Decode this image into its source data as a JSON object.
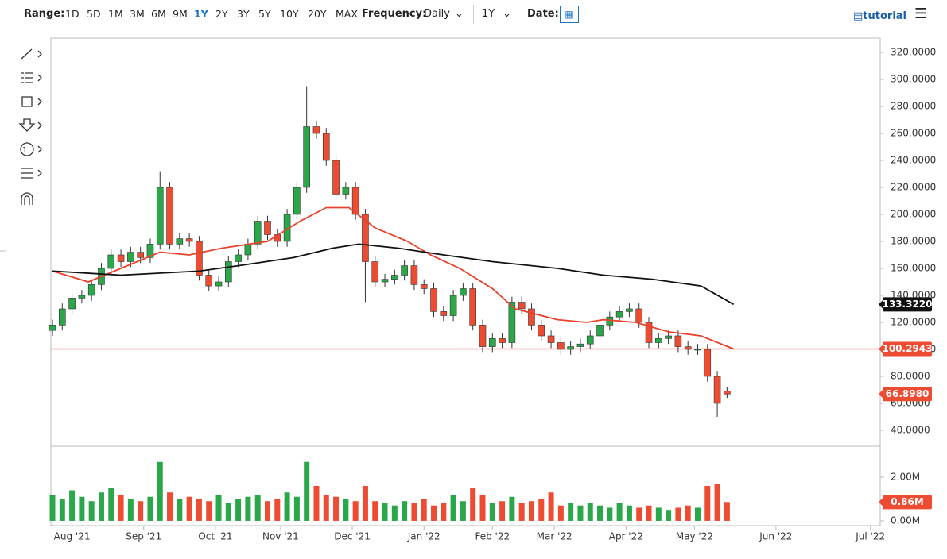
{
  "toolbar": {
    "range_label": "Range:",
    "ranges": [
      "1D",
      "5D",
      "1M",
      "3M",
      "6M",
      "9M",
      "1Y",
      "2Y",
      "3Y",
      "5Y",
      "10Y",
      "20Y",
      "MAX"
    ],
    "range_selected_index": 6,
    "frequency_label": "Frequency:",
    "frequency": "Daily",
    "period": "1Y",
    "date_label": "Date:",
    "tutorial": "tutorial"
  },
  "chart_data": {
    "type": "candlestick",
    "up_color": "#2aa748",
    "down_color": "#ee4b33",
    "xlim": [
      0,
      254
    ],
    "xticks": [
      {
        "value": 6,
        "label": "Aug '21"
      },
      {
        "value": 28,
        "label": "Sep '21"
      },
      {
        "value": 50,
        "label": "Oct '21"
      },
      {
        "value": 70,
        "label": "Nov '21"
      },
      {
        "value": 92,
        "label": "Dec '21"
      },
      {
        "value": 114,
        "label": "Jan '22"
      },
      {
        "value": 135,
        "label": "Feb '22"
      },
      {
        "value": 154,
        "label": "Mar '22"
      },
      {
        "value": 176,
        "label": "Apr '22"
      },
      {
        "value": 197,
        "label": "May '22"
      },
      {
        "value": 222,
        "label": "Jun '22"
      },
      {
        "value": 251,
        "label": "Jul '22"
      }
    ],
    "ylim": [
      29.4,
      330.6
    ],
    "yticks": [
      {
        "value": 40,
        "label": "40.0000"
      },
      {
        "value": 60,
        "label": "60.0000"
      },
      {
        "value": 80,
        "label": "80.0000"
      },
      {
        "value": 100,
        "label": "100.0000"
      },
      {
        "value": 120,
        "label": "120.0000"
      },
      {
        "value": 140,
        "label": "140.0000"
      },
      {
        "value": 160,
        "label": "160.0000"
      },
      {
        "value": 180,
        "label": "180.0000"
      },
      {
        "value": 200,
        "label": "200.0000"
      },
      {
        "value": 220,
        "label": "220.0000"
      },
      {
        "value": 240,
        "label": "240.0000"
      },
      {
        "value": 260,
        "label": "260.0000"
      },
      {
        "value": 280,
        "label": "280.0000"
      },
      {
        "value": 300,
        "label": "300.0000"
      },
      {
        "value": 320,
        "label": "320.0000"
      }
    ],
    "x": [
      0,
      3,
      6,
      9,
      12,
      15,
      18,
      21,
      24,
      27,
      30,
      33,
      36,
      39,
      42,
      45,
      48,
      51,
      54,
      57,
      60,
      63,
      66,
      69,
      72,
      75,
      78,
      81,
      84,
      87,
      90,
      93,
      96,
      99,
      102,
      105,
      108,
      111,
      114,
      117,
      120,
      123,
      126,
      129,
      132,
      135,
      138,
      141,
      144,
      147,
      150,
      153,
      156,
      159,
      162,
      165,
      168,
      171,
      174,
      177,
      180,
      183,
      186,
      189,
      192,
      195,
      198,
      201,
      204,
      207
    ],
    "open": [
      114,
      118,
      130,
      138,
      140,
      148,
      160,
      170,
      165,
      172,
      168,
      178,
      220,
      178,
      182,
      180,
      155,
      147,
      150,
      165,
      170,
      178,
      195,
      185,
      180,
      200,
      220,
      265,
      260,
      240,
      215,
      220,
      200,
      165,
      150,
      152,
      155,
      162,
      148,
      145,
      128,
      125,
      140,
      145,
      118,
      102,
      108,
      105,
      135,
      130,
      118,
      110,
      105,
      100,
      102,
      104,
      110,
      118,
      124,
      128,
      130,
      120,
      105,
      108,
      110,
      102,
      100,
      100,
      80,
      69
    ],
    "high": [
      122,
      134,
      142,
      144,
      152,
      164,
      174,
      174,
      176,
      176,
      182,
      232,
      224,
      186,
      186,
      184,
      159,
      154,
      169,
      174,
      182,
      199,
      199,
      189,
      204,
      224,
      295,
      269,
      264,
      244,
      224,
      224,
      204,
      169,
      156,
      159,
      166,
      166,
      152,
      149,
      132,
      144,
      149,
      149,
      122,
      112,
      112,
      139,
      139,
      134,
      122,
      114,
      109,
      106,
      108,
      114,
      122,
      128,
      132,
      134,
      134,
      124,
      112,
      114,
      114,
      106,
      104,
      104,
      84,
      72
    ],
    "low": [
      110,
      114,
      126,
      134,
      136,
      144,
      156,
      161,
      161,
      164,
      164,
      174,
      174,
      174,
      176,
      151,
      143,
      143,
      146,
      161,
      166,
      174,
      181,
      176,
      176,
      196,
      216,
      256,
      236,
      211,
      211,
      196,
      135,
      146,
      146,
      148,
      151,
      144,
      141,
      124,
      121,
      121,
      136,
      114,
      98,
      98,
      101,
      101,
      126,
      114,
      106,
      101,
      96,
      96,
      98,
      100,
      106,
      114,
      120,
      124,
      116,
      101,
      101,
      104,
      98,
      96,
      96,
      76,
      50,
      64
    ],
    "close": [
      118,
      130,
      138,
      140,
      148,
      160,
      170,
      165,
      172,
      168,
      178,
      220,
      178,
      182,
      180,
      155,
      147,
      150,
      165,
      170,
      178,
      195,
      185,
      180,
      200,
      220,
      265,
      260,
      240,
      215,
      220,
      200,
      165,
      150,
      152,
      155,
      162,
      148,
      145,
      128,
      125,
      140,
      145,
      118,
      102,
      108,
      105,
      135,
      130,
      118,
      110,
      105,
      100,
      102,
      104,
      110,
      118,
      124,
      128,
      130,
      120,
      105,
      108,
      110,
      102,
      100,
      100,
      80,
      60,
      66.898
    ],
    "lines": [
      {
        "color": "#e8412c",
        "x": [
          0,
          11,
          33,
          42,
          52,
          66,
          76,
          84,
          91,
          99,
          109,
          116,
          125,
          135,
          142,
          155,
          164,
          169,
          179,
          189,
          199,
          209
        ],
        "values": [
          158,
          150,
          172,
          170,
          175,
          180,
          195,
          205,
          205,
          190,
          180,
          170,
          160,
          145,
          130,
          122,
          120,
          122,
          120,
          113,
          110,
          100.2943
        ]
      },
      {
        "color": "#111111",
        "x": [
          0,
          21,
          45,
          57,
          74,
          86,
          94,
          106,
          120,
          135,
          155,
          169,
          184,
          199,
          209
        ],
        "values": [
          158,
          155,
          158,
          162,
          168,
          175,
          178,
          175,
          170,
          165,
          160,
          155,
          152,
          147,
          133.322
        ]
      }
    ],
    "hline": {
      "value": 100.2943,
      "color": "#f28a8a"
    },
    "price_tags": [
      {
        "value": 133.322,
        "label": "133.3220",
        "color": "#111111"
      },
      {
        "value": 100.2943,
        "label": "100.2943",
        "color": "#ee4b33"
      },
      {
        "value": 66.898,
        "label": "66.8980",
        "color": "#ee4b33"
      }
    ],
    "volume": {
      "ylim": [
        -0.22,
        3.2
      ],
      "yticks": [
        {
          "value": 0,
          "label": "0.00M"
        },
        {
          "value": 2,
          "label": "2.00M"
        }
      ],
      "values": [
        1.2,
        1.0,
        1.4,
        1.1,
        0.9,
        1.3,
        1.5,
        1.2,
        1.0,
        0.9,
        1.1,
        2.7,
        1.3,
        1.0,
        1.1,
        1.0,
        0.9,
        1.2,
        0.8,
        1.0,
        1.1,
        1.2,
        0.9,
        1.0,
        1.3,
        1.1,
        2.7,
        1.6,
        1.2,
        1.1,
        1.0,
        0.9,
        1.6,
        0.9,
        0.8,
        0.7,
        0.9,
        0.8,
        1.0,
        0.7,
        0.8,
        1.2,
        0.9,
        1.5,
        1.2,
        0.8,
        0.9,
        1.1,
        0.8,
        0.9,
        1.0,
        1.3,
        0.7,
        0.8,
        0.7,
        0.8,
        0.7,
        0.6,
        0.8,
        0.7,
        0.6,
        0.7,
        0.6,
        0.5,
        0.6,
        0.7,
        0.6,
        1.6,
        1.7,
        0.86
      ],
      "tag": {
        "value": 0.86,
        "label": "0.86M",
        "color": "#ee4b33"
      }
    }
  }
}
